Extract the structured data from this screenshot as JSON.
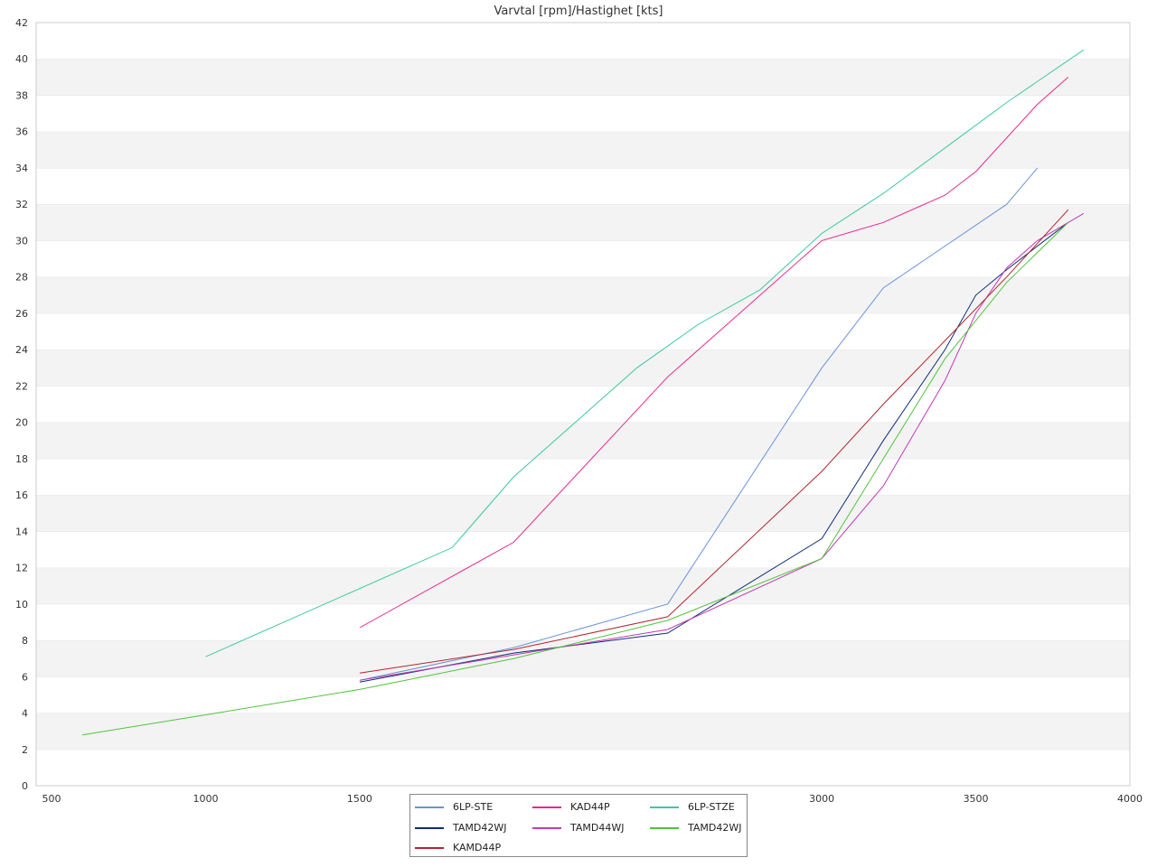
{
  "chart_data": {
    "type": "line",
    "title": "Varvtal [rpm]/Hastighet [kts]",
    "xlabel": "",
    "ylabel": "",
    "xlim": [
      450,
      4000
    ],
    "ylim": [
      0,
      42
    ],
    "x_ticks": [
      500,
      1000,
      1500,
      2000,
      2500,
      3000,
      3500,
      4000
    ],
    "x_tick_labels": [
      "500",
      "1000",
      "1500",
      "",
      "",
      "3000",
      "3500",
      "4000"
    ],
    "y_ticks": [
      0,
      2,
      4,
      6,
      8,
      10,
      12,
      14,
      16,
      18,
      20,
      22,
      24,
      26,
      28,
      30,
      32,
      34,
      36,
      38,
      40,
      42
    ],
    "grid": "horizontal bands",
    "band_color": "#f3f3f3",
    "legend_position": "bottom-center",
    "series": [
      {
        "name": "6LP-STE",
        "color": "#6a93d9",
        "points": [
          [
            1500,
            5.8
          ],
          [
            2000,
            7.6
          ],
          [
            2500,
            10.0
          ],
          [
            3000,
            23.0
          ],
          [
            3200,
            27.4
          ],
          [
            3600,
            32.0
          ],
          [
            3700,
            34.0
          ]
        ]
      },
      {
        "name": "KAD44P",
        "color": "#e8278f",
        "points": [
          [
            1500,
            8.7
          ],
          [
            2000,
            13.4
          ],
          [
            2500,
            22.5
          ],
          [
            3000,
            30.0
          ],
          [
            3200,
            31.0
          ],
          [
            3400,
            32.5
          ],
          [
            3500,
            33.8
          ],
          [
            3700,
            37.5
          ],
          [
            3800,
            39.0
          ]
        ]
      },
      {
        "name": "6LP-STZE",
        "color": "#3cc9a0",
        "points": [
          [
            1000,
            7.1
          ],
          [
            1800,
            13.1
          ],
          [
            2000,
            17.0
          ],
          [
            2200,
            20.0
          ],
          [
            2400,
            23.0
          ],
          [
            2600,
            25.4
          ],
          [
            2800,
            27.3
          ],
          [
            3000,
            30.4
          ],
          [
            3200,
            32.6
          ],
          [
            3400,
            35.1
          ],
          [
            3600,
            37.6
          ],
          [
            3850,
            40.5
          ]
        ]
      },
      {
        "name": "TAMD42WJ",
        "color": "#0f2c78",
        "points": [
          [
            1500,
            5.7
          ],
          [
            2000,
            7.3
          ],
          [
            2500,
            8.4
          ],
          [
            3000,
            13.6
          ],
          [
            3200,
            19.0
          ],
          [
            3400,
            24.0
          ],
          [
            3500,
            27.0
          ],
          [
            3600,
            28.4
          ],
          [
            3800,
            31.0
          ]
        ]
      },
      {
        "name": "TAMD44WJ",
        "color": "#c438b6",
        "points": [
          [
            1500,
            5.8
          ],
          [
            2000,
            7.2
          ],
          [
            2500,
            8.6
          ],
          [
            3000,
            12.5
          ],
          [
            3200,
            16.5
          ],
          [
            3400,
            22.3
          ],
          [
            3500,
            26.0
          ],
          [
            3600,
            28.5
          ],
          [
            3700,
            30.0
          ],
          [
            3850,
            31.5
          ]
        ]
      },
      {
        "name": "TAMD42WJ",
        "color": "#4fc43c",
        "points": [
          [
            600,
            2.8
          ],
          [
            1000,
            3.9
          ],
          [
            1500,
            5.3
          ],
          [
            2000,
            7.0
          ],
          [
            2500,
            9.1
          ],
          [
            3000,
            12.5
          ],
          [
            3200,
            18.0
          ],
          [
            3400,
            23.5
          ],
          [
            3600,
            27.7
          ],
          [
            3800,
            31.0
          ]
        ]
      },
      {
        "name": "KAMD44P",
        "color": "#b3262d",
        "points": [
          [
            1500,
            6.2
          ],
          [
            2000,
            7.5
          ],
          [
            2500,
            9.3
          ],
          [
            3000,
            17.3
          ],
          [
            3200,
            21.0
          ],
          [
            3400,
            24.5
          ],
          [
            3600,
            28.0
          ],
          [
            3800,
            31.7
          ]
        ]
      }
    ]
  }
}
